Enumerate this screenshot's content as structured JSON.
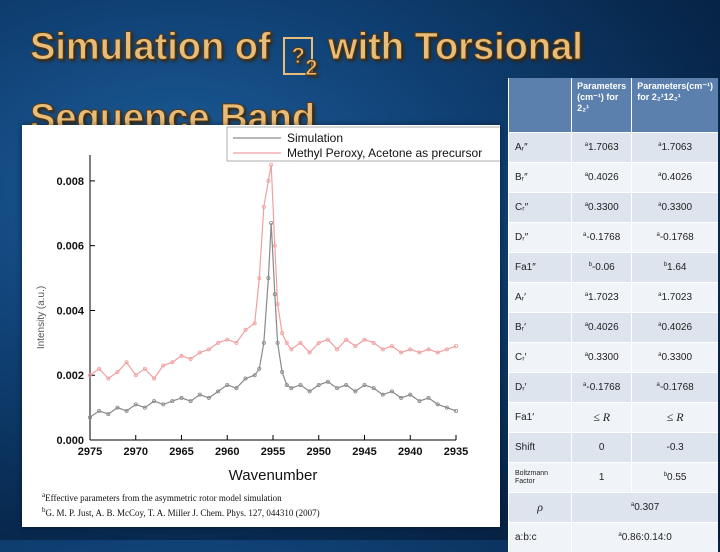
{
  "slide": {
    "title_prefix": "Simulation of",
    "title_glyph": "?",
    "title_sub": "2",
    "title_suffix": "with Torsional",
    "title_line2": "Sequence Band"
  },
  "colors": {
    "simulation": "#8a8a8a",
    "experiment": "#f0a0a0",
    "title": "#e8bd7a",
    "table_header": "#5b80ad"
  },
  "chart_data": {
    "type": "line",
    "title": "",
    "xlabel": "Wavenumber",
    "ylabel": "Intensity (a.u.)",
    "xlim": [
      2975,
      2935
    ],
    "ylim": [
      0.0,
      0.0088
    ],
    "x_ticks": [
      2975,
      2970,
      2965,
      2960,
      2955,
      2950,
      2945,
      2940,
      2935
    ],
    "y_ticks": [
      0.0,
      0.002,
      0.004,
      0.006,
      0.008
    ],
    "y_tick_labels": [
      "0.000",
      "0.002",
      "0.004",
      "0.006",
      "0.008"
    ],
    "legend": {
      "position": "top-right"
    },
    "series": [
      {
        "name": "Simulation",
        "x": [
          2975,
          2974,
          2973,
          2972,
          2971,
          2970,
          2969,
          2968,
          2967,
          2966,
          2965,
          2964,
          2963,
          2962,
          2961,
          2960,
          2959,
          2958,
          2957,
          2956.5,
          2956,
          2955.5,
          2955.2,
          2954.8,
          2954.5,
          2954,
          2953.5,
          2953,
          2952,
          2951,
          2950,
          2949,
          2948,
          2947,
          2946,
          2945,
          2944,
          2943,
          2942,
          2941,
          2940,
          2939,
          2938,
          2937,
          2936,
          2935
        ],
        "y": [
          0.0007,
          0.0009,
          0.0008,
          0.001,
          0.0009,
          0.0011,
          0.001,
          0.0012,
          0.0011,
          0.0012,
          0.0013,
          0.0012,
          0.0014,
          0.0013,
          0.0015,
          0.0017,
          0.0016,
          0.0019,
          0.002,
          0.0022,
          0.003,
          0.005,
          0.0067,
          0.0045,
          0.003,
          0.0021,
          0.0017,
          0.0016,
          0.0017,
          0.0015,
          0.0017,
          0.0018,
          0.0016,
          0.0017,
          0.0015,
          0.0017,
          0.0016,
          0.0014,
          0.0015,
          0.0013,
          0.0014,
          0.0012,
          0.0013,
          0.0011,
          0.001,
          0.0009
        ]
      },
      {
        "name": "Methyl Peroxy, Acetone as precursor",
        "x": [
          2975,
          2974,
          2973,
          2972,
          2971,
          2970,
          2969,
          2968,
          2967,
          2966,
          2965,
          2964,
          2963,
          2962,
          2961,
          2960,
          2959,
          2958,
          2957,
          2956.5,
          2956,
          2955.5,
          2955.2,
          2954.8,
          2954.5,
          2954,
          2953.5,
          2953,
          2952,
          2951,
          2950,
          2949,
          2948,
          2947,
          2946,
          2945,
          2944,
          2943,
          2942,
          2941,
          2940,
          2939,
          2938,
          2937,
          2936,
          2935
        ],
        "y": [
          0.002,
          0.0022,
          0.0019,
          0.0021,
          0.0024,
          0.002,
          0.0022,
          0.0019,
          0.0023,
          0.0024,
          0.0026,
          0.0025,
          0.0027,
          0.0028,
          0.003,
          0.0031,
          0.003,
          0.0034,
          0.0036,
          0.005,
          0.0072,
          0.008,
          0.0085,
          0.006,
          0.0042,
          0.0033,
          0.003,
          0.0028,
          0.003,
          0.0027,
          0.003,
          0.0031,
          0.0028,
          0.0031,
          0.0029,
          0.0031,
          0.003,
          0.0028,
          0.0029,
          0.0027,
          0.0028,
          0.0027,
          0.0028,
          0.0027,
          0.0028,
          0.0029
        ]
      }
    ]
  },
  "footnotes": {
    "a_marker": "a",
    "a_text": "Effective parameters from the asymmetric rotor model simulation",
    "b_marker": "b",
    "b_text": "G. M. P. Just, A. B. McCoy, T. A. Miller J. Chem. Phys. 127, 044310 (2007)"
  },
  "table": {
    "header": {
      "col1": "Parameters (cm⁻¹) for 2₂¹",
      "col2": "Parameters(cm⁻¹) for 2₂¹12₂¹"
    },
    "rows": [
      {
        "label": "Aᵣ″",
        "m1": "a",
        "v1": "1.7063",
        "m2": "a",
        "v2": "1.7063"
      },
      {
        "label": "Bᵣ″",
        "m1": "a",
        "v1": "0.4026",
        "m2": "a",
        "v2": "0.4026"
      },
      {
        "label": "Cᵣ″",
        "m1": "a",
        "v1": "0.3300",
        "m2": "a",
        "v2": "0.3300"
      },
      {
        "label": "Dᵣ″",
        "m1": "a",
        "v1": "-0.1768",
        "m2": "a",
        "v2": "-0.1768"
      },
      {
        "label": "Fa1″",
        "m1": "b",
        "v1": "-0.06",
        "m2": "b",
        "v2": "1.64"
      },
      {
        "label": "Aᵣ′",
        "m1": "a",
        "v1": "1.7023",
        "m2": "a",
        "v2": "1.7023"
      },
      {
        "label": "Bᵣ′",
        "m1": "a",
        "v1": "0.4026",
        "m2": "a",
        "v2": "0.4026"
      },
      {
        "label": "Cᵣ′",
        "m1": "a",
        "v1": "0.3300",
        "m2": "a",
        "v2": "0.3300"
      },
      {
        "label": "Dᵣ′",
        "m1": "a",
        "v1": "-0.1768",
        "m2": "a",
        "v2": "-0.1768"
      },
      {
        "label": "Fa1′",
        "m1": "",
        "v1": "≤ R",
        "m2": "",
        "v2": "≤ R"
      },
      {
        "label": "Shift",
        "m1": "",
        "v1": "0",
        "m2": "",
        "v2": "-0.3"
      },
      {
        "label": "Boltzmann Factor",
        "m1": "",
        "v1": "1",
        "m2": "b",
        "v2": "0.55"
      }
    ],
    "rho": {
      "label": "ρ",
      "marker": "a",
      "value": "0.307"
    },
    "ratio": {
      "label": "a:b:c",
      "marker": "a",
      "value": "0.86:0.14:0"
    }
  }
}
